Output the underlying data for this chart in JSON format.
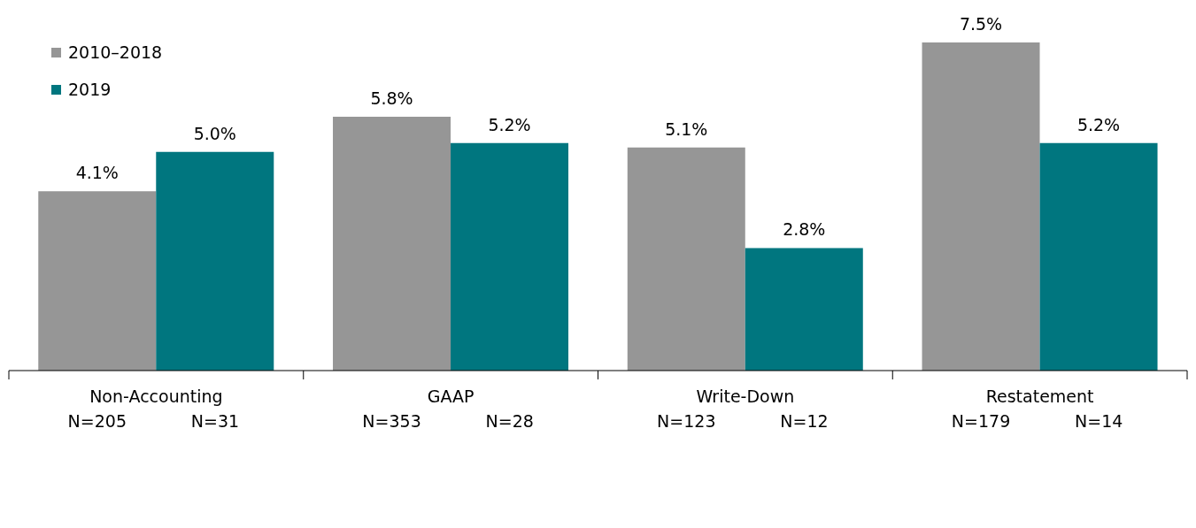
{
  "chart_data": {
    "type": "bar",
    "categories": [
      "Non-Accounting\nN=205  N=31",
      "GAAP\nN=353  N=28",
      "Write-Down\nN=123  N=12",
      "Restatement\nN=179  N=14"
    ],
    "series": [
      {
        "name": "2010–2018",
        "color": "#969696",
        "values": [
          4.1,
          5.8,
          5.1,
          7.5
        ],
        "value_labels": [
          "4.1%",
          "5.8%",
          "5.1%",
          "7.5%"
        ]
      },
      {
        "name": "2019",
        "color": "#00767f",
        "values": [
          5.0,
          5.2,
          2.8,
          5.2
        ],
        "value_labels": [
          "5.0%",
          "5.2%",
          "2.8%",
          "5.2%"
        ]
      }
    ],
    "legend": "top left",
    "grid": false
  }
}
